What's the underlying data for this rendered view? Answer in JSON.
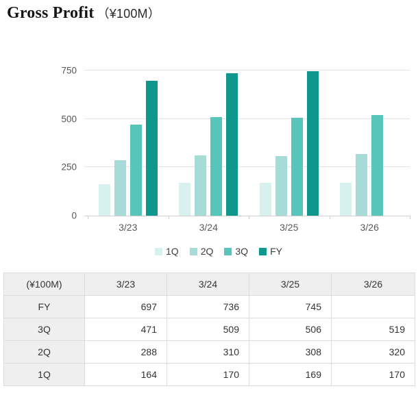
{
  "title": {
    "main": "Gross Profit",
    "unit": "（¥100M）"
  },
  "colors": {
    "1Q": "#d7f1ef",
    "2Q": "#a6dbd7",
    "3Q": "#58c5ba",
    "FY": "#0f978e"
  },
  "chart_data": {
    "type": "bar",
    "title": "Gross Profit（¥100M）",
    "categories": [
      "3/23",
      "3/24",
      "3/25",
      "3/26"
    ],
    "series": [
      {
        "name": "1Q",
        "color": "#d7f1ef",
        "values": [
          164,
          170,
          169,
          170
        ]
      },
      {
        "name": "2Q",
        "color": "#a6dbd7",
        "values": [
          288,
          310,
          308,
          320
        ]
      },
      {
        "name": "3Q",
        "color": "#58c5ba",
        "values": [
          471,
          509,
          506,
          519
        ]
      },
      {
        "name": "FY",
        "color": "#0f978e",
        "values": [
          697,
          736,
          745,
          null
        ]
      }
    ],
    "xlabel": "",
    "ylabel": "",
    "ylim": [
      0,
      750
    ],
    "y_ticks": [
      0,
      250,
      500,
      750
    ],
    "grid": true,
    "legend_position": "bottom"
  },
  "table": {
    "header": [
      "(¥100M)",
      "3/23",
      "3/24",
      "3/25",
      "3/26"
    ],
    "rows": [
      {
        "label": "FY",
        "values": [
          "697",
          "736",
          "745",
          ""
        ]
      },
      {
        "label": "3Q",
        "values": [
          "471",
          "509",
          "506",
          "519"
        ]
      },
      {
        "label": "2Q",
        "values": [
          "288",
          "310",
          "308",
          "320"
        ]
      },
      {
        "label": "1Q",
        "values": [
          "164",
          "170",
          "169",
          "170"
        ]
      }
    ]
  }
}
